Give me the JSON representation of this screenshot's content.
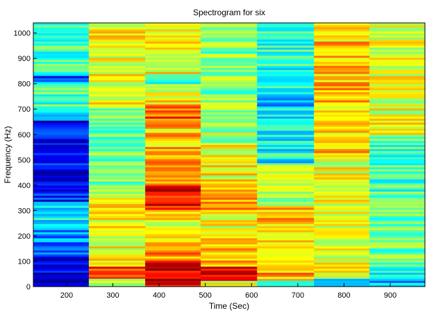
{
  "chart_data": {
    "type": "heatmap",
    "title": "Spectrogram for six",
    "xlabel": "Time (Sec)",
    "ylabel": "Frequency (Hz)",
    "xlim": [
      128,
      975
    ],
    "ylim": [
      0,
      1040
    ],
    "x_ticks": [
      200,
      300,
      400,
      500,
      600,
      700,
      800,
      900
    ],
    "y_ticks": [
      0,
      100,
      200,
      300,
      400,
      500,
      600,
      700,
      800,
      900,
      1000
    ],
    "colormap": "jet",
    "value_range": [
      0,
      1
    ],
    "columns": [
      {
        "x_start": 128,
        "x_end": 248,
        "base": 0.45,
        "bands": [
          {
            "from": 0,
            "to": 120,
            "value": 0.1
          },
          {
            "from": 120,
            "to": 220,
            "value": 0.25
          },
          {
            "from": 220,
            "to": 330,
            "value": 0.35
          },
          {
            "from": 330,
            "to": 370,
            "value": 0.15
          },
          {
            "from": 370,
            "to": 650,
            "value": 0.12
          },
          {
            "from": 650,
            "to": 700,
            "value": 0.35
          },
          {
            "from": 805,
            "to": 825,
            "value": 0.15
          }
        ]
      },
      {
        "x_start": 248,
        "x_end": 370,
        "base": 0.58,
        "bands": [
          {
            "from": 0,
            "to": 30,
            "value": 0.6
          },
          {
            "from": 30,
            "to": 75,
            "value": 0.85
          },
          {
            "from": 75,
            "to": 350,
            "value": 0.62
          },
          {
            "from": 350,
            "to": 700,
            "value": 0.48
          },
          {
            "from": 700,
            "to": 1040,
            "value": 0.62
          }
        ]
      },
      {
        "x_start": 370,
        "x_end": 490,
        "base": 0.62,
        "bands": [
          {
            "from": 0,
            "to": 100,
            "value": 0.9
          },
          {
            "from": 100,
            "to": 180,
            "value": 0.72
          },
          {
            "from": 180,
            "to": 300,
            "value": 0.62
          },
          {
            "from": 300,
            "to": 400,
            "value": 0.88
          },
          {
            "from": 400,
            "to": 550,
            "value": 0.76
          },
          {
            "from": 550,
            "to": 660,
            "value": 0.68
          },
          {
            "from": 660,
            "to": 720,
            "value": 0.8
          },
          {
            "from": 800,
            "to": 840,
            "value": 0.45
          }
        ]
      },
      {
        "x_start": 490,
        "x_end": 612,
        "base": 0.55,
        "bands": [
          {
            "from": 0,
            "to": 20,
            "value": 0.6
          },
          {
            "from": 20,
            "to": 80,
            "value": 0.9
          },
          {
            "from": 80,
            "to": 200,
            "value": 0.72
          },
          {
            "from": 200,
            "to": 300,
            "value": 0.6
          },
          {
            "from": 300,
            "to": 420,
            "value": 0.72
          },
          {
            "from": 420,
            "to": 560,
            "value": 0.62
          },
          {
            "from": 560,
            "to": 720,
            "value": 0.55
          },
          {
            "from": 720,
            "to": 1040,
            "value": 0.5
          }
        ]
      },
      {
        "x_start": 612,
        "x_end": 735,
        "base": 0.45,
        "bands": [
          {
            "from": 0,
            "to": 20,
            "value": 0.35
          },
          {
            "from": 20,
            "to": 100,
            "value": 0.7
          },
          {
            "from": 100,
            "to": 320,
            "value": 0.68
          },
          {
            "from": 320,
            "to": 480,
            "value": 0.55
          },
          {
            "from": 480,
            "to": 700,
            "value": 0.38
          },
          {
            "from": 700,
            "to": 780,
            "value": 0.32
          },
          {
            "from": 780,
            "to": 1040,
            "value": 0.42
          }
        ]
      },
      {
        "x_start": 735,
        "x_end": 855,
        "base": 0.65,
        "bands": [
          {
            "from": 0,
            "to": 30,
            "value": 0.25
          },
          {
            "from": 30,
            "to": 500,
            "value": 0.6
          },
          {
            "from": 500,
            "to": 1040,
            "value": 0.68
          }
        ]
      },
      {
        "x_start": 855,
        "x_end": 975,
        "base": 0.52,
        "bands": [
          {
            "from": 0,
            "to": 40,
            "value": 0.3
          },
          {
            "from": 40,
            "to": 80,
            "value": 0.42
          },
          {
            "from": 80,
            "to": 300,
            "value": 0.48
          },
          {
            "from": 300,
            "to": 600,
            "value": 0.45
          },
          {
            "from": 600,
            "to": 1040,
            "value": 0.6
          }
        ]
      }
    ]
  }
}
